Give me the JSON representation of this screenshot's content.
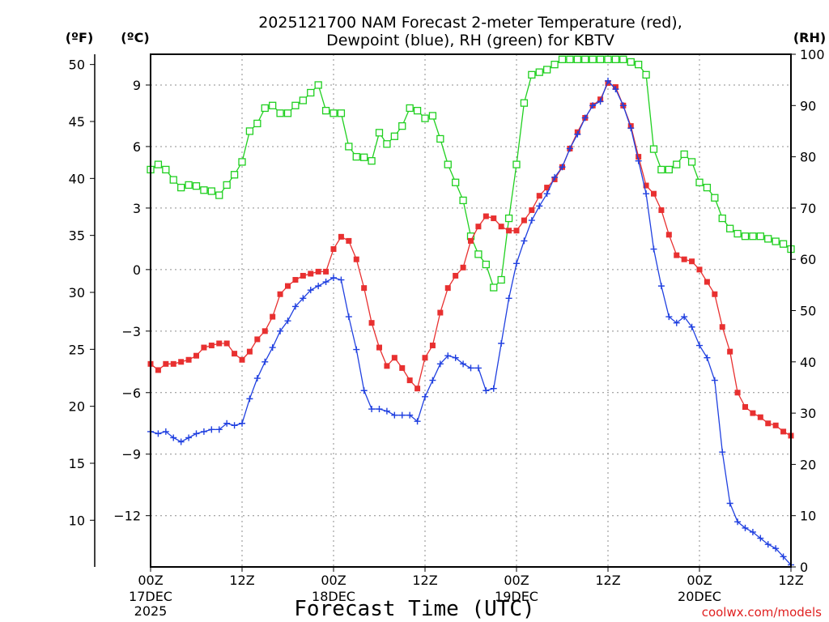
{
  "chart_data": {
    "type": "line",
    "title": {
      "line1": "2025121700 NAM Forecast 2-meter Temperature (red),",
      "line2": "Dewpoint (blue), RH (green) for KBTV"
    },
    "xlabel": "Forecast Time (UTC)",
    "credit": "coolwx.com/models",
    "units": {
      "fahrenheit": "(ºF)",
      "celsius": "(ºC)",
      "rh": "(RH)"
    },
    "x_range_hours": [
      0,
      84
    ],
    "x_ticks": [
      {
        "h": 0,
        "label": "00Z",
        "sub": [
          "17DEC",
          "2025"
        ]
      },
      {
        "h": 12,
        "label": "12Z",
        "sub": []
      },
      {
        "h": 24,
        "label": "00Z",
        "sub": [
          "18DEC"
        ]
      },
      {
        "h": 36,
        "label": "12Z",
        "sub": []
      },
      {
        "h": 48,
        "label": "00Z",
        "sub": [
          "19DEC"
        ]
      },
      {
        "h": 60,
        "label": "12Z",
        "sub": []
      },
      {
        "h": 72,
        "label": "00Z",
        "sub": [
          "20DEC"
        ]
      },
      {
        "h": 84,
        "label": "12Z",
        "sub": []
      }
    ],
    "y_celsius": {
      "range": [
        -14.5,
        10.5
      ],
      "ticks": [
        9,
        6,
        3,
        0,
        -3,
        -6,
        -9,
        -12
      ],
      "labels": [
        "9",
        "6",
        "3",
        "0",
        "−3",
        "−6",
        "−9",
        "−12"
      ]
    },
    "y_fahrenheit": {
      "ticks": [
        50,
        45,
        40,
        35,
        30,
        25,
        20,
        15,
        10
      ],
      "labels": [
        "50",
        "45",
        "40",
        "35",
        "30",
        "25",
        "20",
        "15",
        "10"
      ]
    },
    "y_rh": {
      "range": [
        0,
        100
      ],
      "ticks": [
        100,
        90,
        80,
        70,
        60,
        50,
        40,
        30,
        20,
        10,
        0
      ],
      "labels": [
        "100",
        "90",
        "80",
        "70",
        "60",
        "50",
        "40",
        "30",
        "20",
        "10",
        "0"
      ]
    },
    "series": [
      {
        "name": "Temperature",
        "units": "C",
        "color": "#e83030",
        "marker": "filled-square",
        "x": [
          0,
          1,
          2,
          3,
          4,
          5,
          6,
          7,
          8,
          9,
          10,
          11,
          12,
          13,
          14,
          15,
          16,
          17,
          18,
          19,
          20,
          21,
          22,
          23,
          24,
          25,
          26,
          27,
          28,
          29,
          30,
          31,
          32,
          33,
          34,
          35,
          36,
          37,
          38,
          39,
          40,
          41,
          42,
          43,
          44,
          45,
          46,
          47,
          48,
          49,
          50,
          51,
          52,
          53,
          54,
          55,
          56,
          57,
          58,
          59,
          60,
          61,
          62,
          63,
          64,
          65,
          66,
          67,
          68,
          69,
          70,
          71,
          72,
          73,
          74,
          75,
          76,
          77,
          78,
          79,
          80,
          81,
          82,
          83,
          84
        ],
        "values": [
          -4.6,
          -4.9,
          -4.6,
          -4.6,
          -4.5,
          -4.4,
          -4.2,
          -3.8,
          -3.7,
          -3.6,
          -3.6,
          -4.1,
          -4.4,
          -4.0,
          -3.4,
          -3.0,
          -2.3,
          -1.2,
          -0.8,
          -0.5,
          -0.3,
          -0.2,
          -0.1,
          -0.1,
          1.0,
          1.6,
          1.4,
          0.5,
          -0.9,
          -2.6,
          -3.8,
          -4.7,
          -4.3,
          -4.8,
          -5.4,
          -5.8,
          -4.3,
          -3.7,
          -2.1,
          -0.9,
          -0.3,
          0.1,
          1.4,
          2.1,
          2.6,
          2.5,
          2.1,
          1.9,
          1.9,
          2.4,
          2.9,
          3.6,
          4.0,
          4.4,
          5.0,
          5.9,
          6.7,
          7.4,
          8.0,
          8.3,
          9.1,
          8.9,
          8.0,
          7.0,
          5.5,
          4.1,
          3.7,
          2.9,
          1.7,
          0.7,
          0.5,
          0.4,
          0.0,
          -0.6,
          -1.2,
          -2.8,
          -4.0,
          -6.0,
          -6.7,
          -7.0,
          -7.2,
          -7.5,
          -7.6,
          -7.9,
          -8.1
        ]
      },
      {
        "name": "Dewpoint",
        "units": "C",
        "color": "#2040e0",
        "marker": "plus",
        "x": [
          0,
          1,
          2,
          3,
          4,
          5,
          6,
          7,
          8,
          9,
          10,
          11,
          12,
          13,
          14,
          15,
          16,
          17,
          18,
          19,
          20,
          21,
          22,
          23,
          24,
          25,
          26,
          27,
          28,
          29,
          30,
          31,
          32,
          33,
          34,
          35,
          36,
          37,
          38,
          39,
          40,
          41,
          42,
          43,
          44,
          45,
          46,
          47,
          48,
          49,
          50,
          51,
          52,
          53,
          54,
          55,
          56,
          57,
          58,
          59,
          60,
          61,
          62,
          63,
          64,
          65,
          66,
          67,
          68,
          69,
          70,
          71,
          72,
          73,
          74,
          75,
          76,
          77,
          78,
          79,
          80,
          81,
          82,
          83,
          84
        ],
        "values": [
          -7.9,
          -8.0,
          -7.9,
          -8.2,
          -8.4,
          -8.2,
          -8.0,
          -7.9,
          -7.8,
          -7.8,
          -7.5,
          -7.6,
          -7.5,
          -6.3,
          -5.3,
          -4.5,
          -3.8,
          -3.0,
          -2.5,
          -1.8,
          -1.4,
          -1.0,
          -0.8,
          -0.6,
          -0.4,
          -0.5,
          -2.3,
          -3.9,
          -5.9,
          -6.8,
          -6.8,
          -6.9,
          -7.1,
          -7.1,
          -7.1,
          -7.4,
          -6.2,
          -5.4,
          -4.6,
          -4.2,
          -4.3,
          -4.6,
          -4.8,
          -4.8,
          -5.9,
          -5.8,
          -3.6,
          -1.4,
          0.3,
          1.4,
          2.4,
          3.1,
          3.7,
          4.5,
          5.0,
          5.9,
          6.6,
          7.4,
          8.0,
          8.2,
          9.2,
          8.8,
          8.0,
          6.9,
          5.3,
          3.7,
          1.0,
          -0.8,
          -2.3,
          -2.6,
          -2.3,
          -2.8,
          -3.7,
          -4.3,
          -5.4,
          -8.9,
          -11.4,
          -12.3,
          -12.6,
          -12.8,
          -13.1,
          -13.4,
          -13.6,
          -14.0,
          -14.4
        ]
      },
      {
        "name": "RH",
        "units": "%",
        "color": "#20d020",
        "marker": "open-square",
        "x": [
          0,
          1,
          2,
          3,
          4,
          5,
          6,
          7,
          8,
          9,
          10,
          11,
          12,
          13,
          14,
          15,
          16,
          17,
          18,
          19,
          20,
          21,
          22,
          23,
          24,
          25,
          26,
          27,
          28,
          29,
          30,
          31,
          32,
          33,
          34,
          35,
          36,
          37,
          38,
          39,
          40,
          41,
          42,
          43,
          44,
          45,
          46,
          47,
          48,
          49,
          50,
          51,
          52,
          53,
          54,
          55,
          56,
          57,
          58,
          59,
          60,
          61,
          62,
          63,
          64,
          65,
          66,
          67,
          68,
          69,
          70,
          71,
          72,
          73,
          74,
          75,
          76,
          77,
          78,
          79,
          80,
          81,
          82,
          83,
          84
        ],
        "values": [
          77.5,
          78.5,
          77.5,
          75.5,
          74.0,
          74.5,
          74.3,
          73.5,
          73.3,
          72.5,
          74.5,
          76.5,
          79.0,
          85.0,
          86.5,
          89.5,
          90.0,
          88.5,
          88.5,
          90.0,
          91.0,
          92.5,
          94.0,
          89.0,
          88.5,
          88.5,
          82.0,
          80.0,
          79.9,
          79.2,
          84.7,
          82.5,
          84.0,
          86.0,
          89.5,
          89.0,
          87.5,
          88.0,
          83.5,
          78.5,
          75.0,
          71.5,
          64.5,
          61.0,
          59.0,
          54.5,
          56.0,
          68.0,
          78.5,
          90.5,
          96.0,
          96.5,
          97.0,
          98.0,
          99.0,
          99.0,
          99.0,
          99.0,
          99.0,
          99.0,
          99.0,
          99.0,
          99.0,
          98.5,
          98.0,
          96.0,
          81.5,
          77.5,
          77.5,
          78.5,
          80.5,
          79.0,
          75.0,
          74.0,
          72.0,
          68.0,
          66.0,
          65.0,
          64.5,
          64.5,
          64.5,
          64.0,
          63.5,
          63.0,
          62.0
        ]
      }
    ]
  }
}
